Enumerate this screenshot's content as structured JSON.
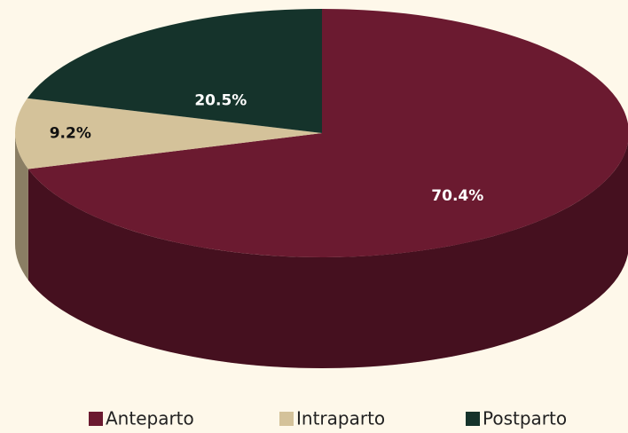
{
  "chart_data": {
    "type": "pie",
    "categories": [
      "Anteparto",
      "Intraparto",
      "Postparto"
    ],
    "values": [
      70.4,
      9.2,
      20.5
    ],
    "value_labels": [
      "70.4%",
      "9.2%",
      "20.5%"
    ],
    "colors": [
      "#6b1a30",
      "#d4c29a",
      "#15332b"
    ],
    "legend": "bottom"
  }
}
